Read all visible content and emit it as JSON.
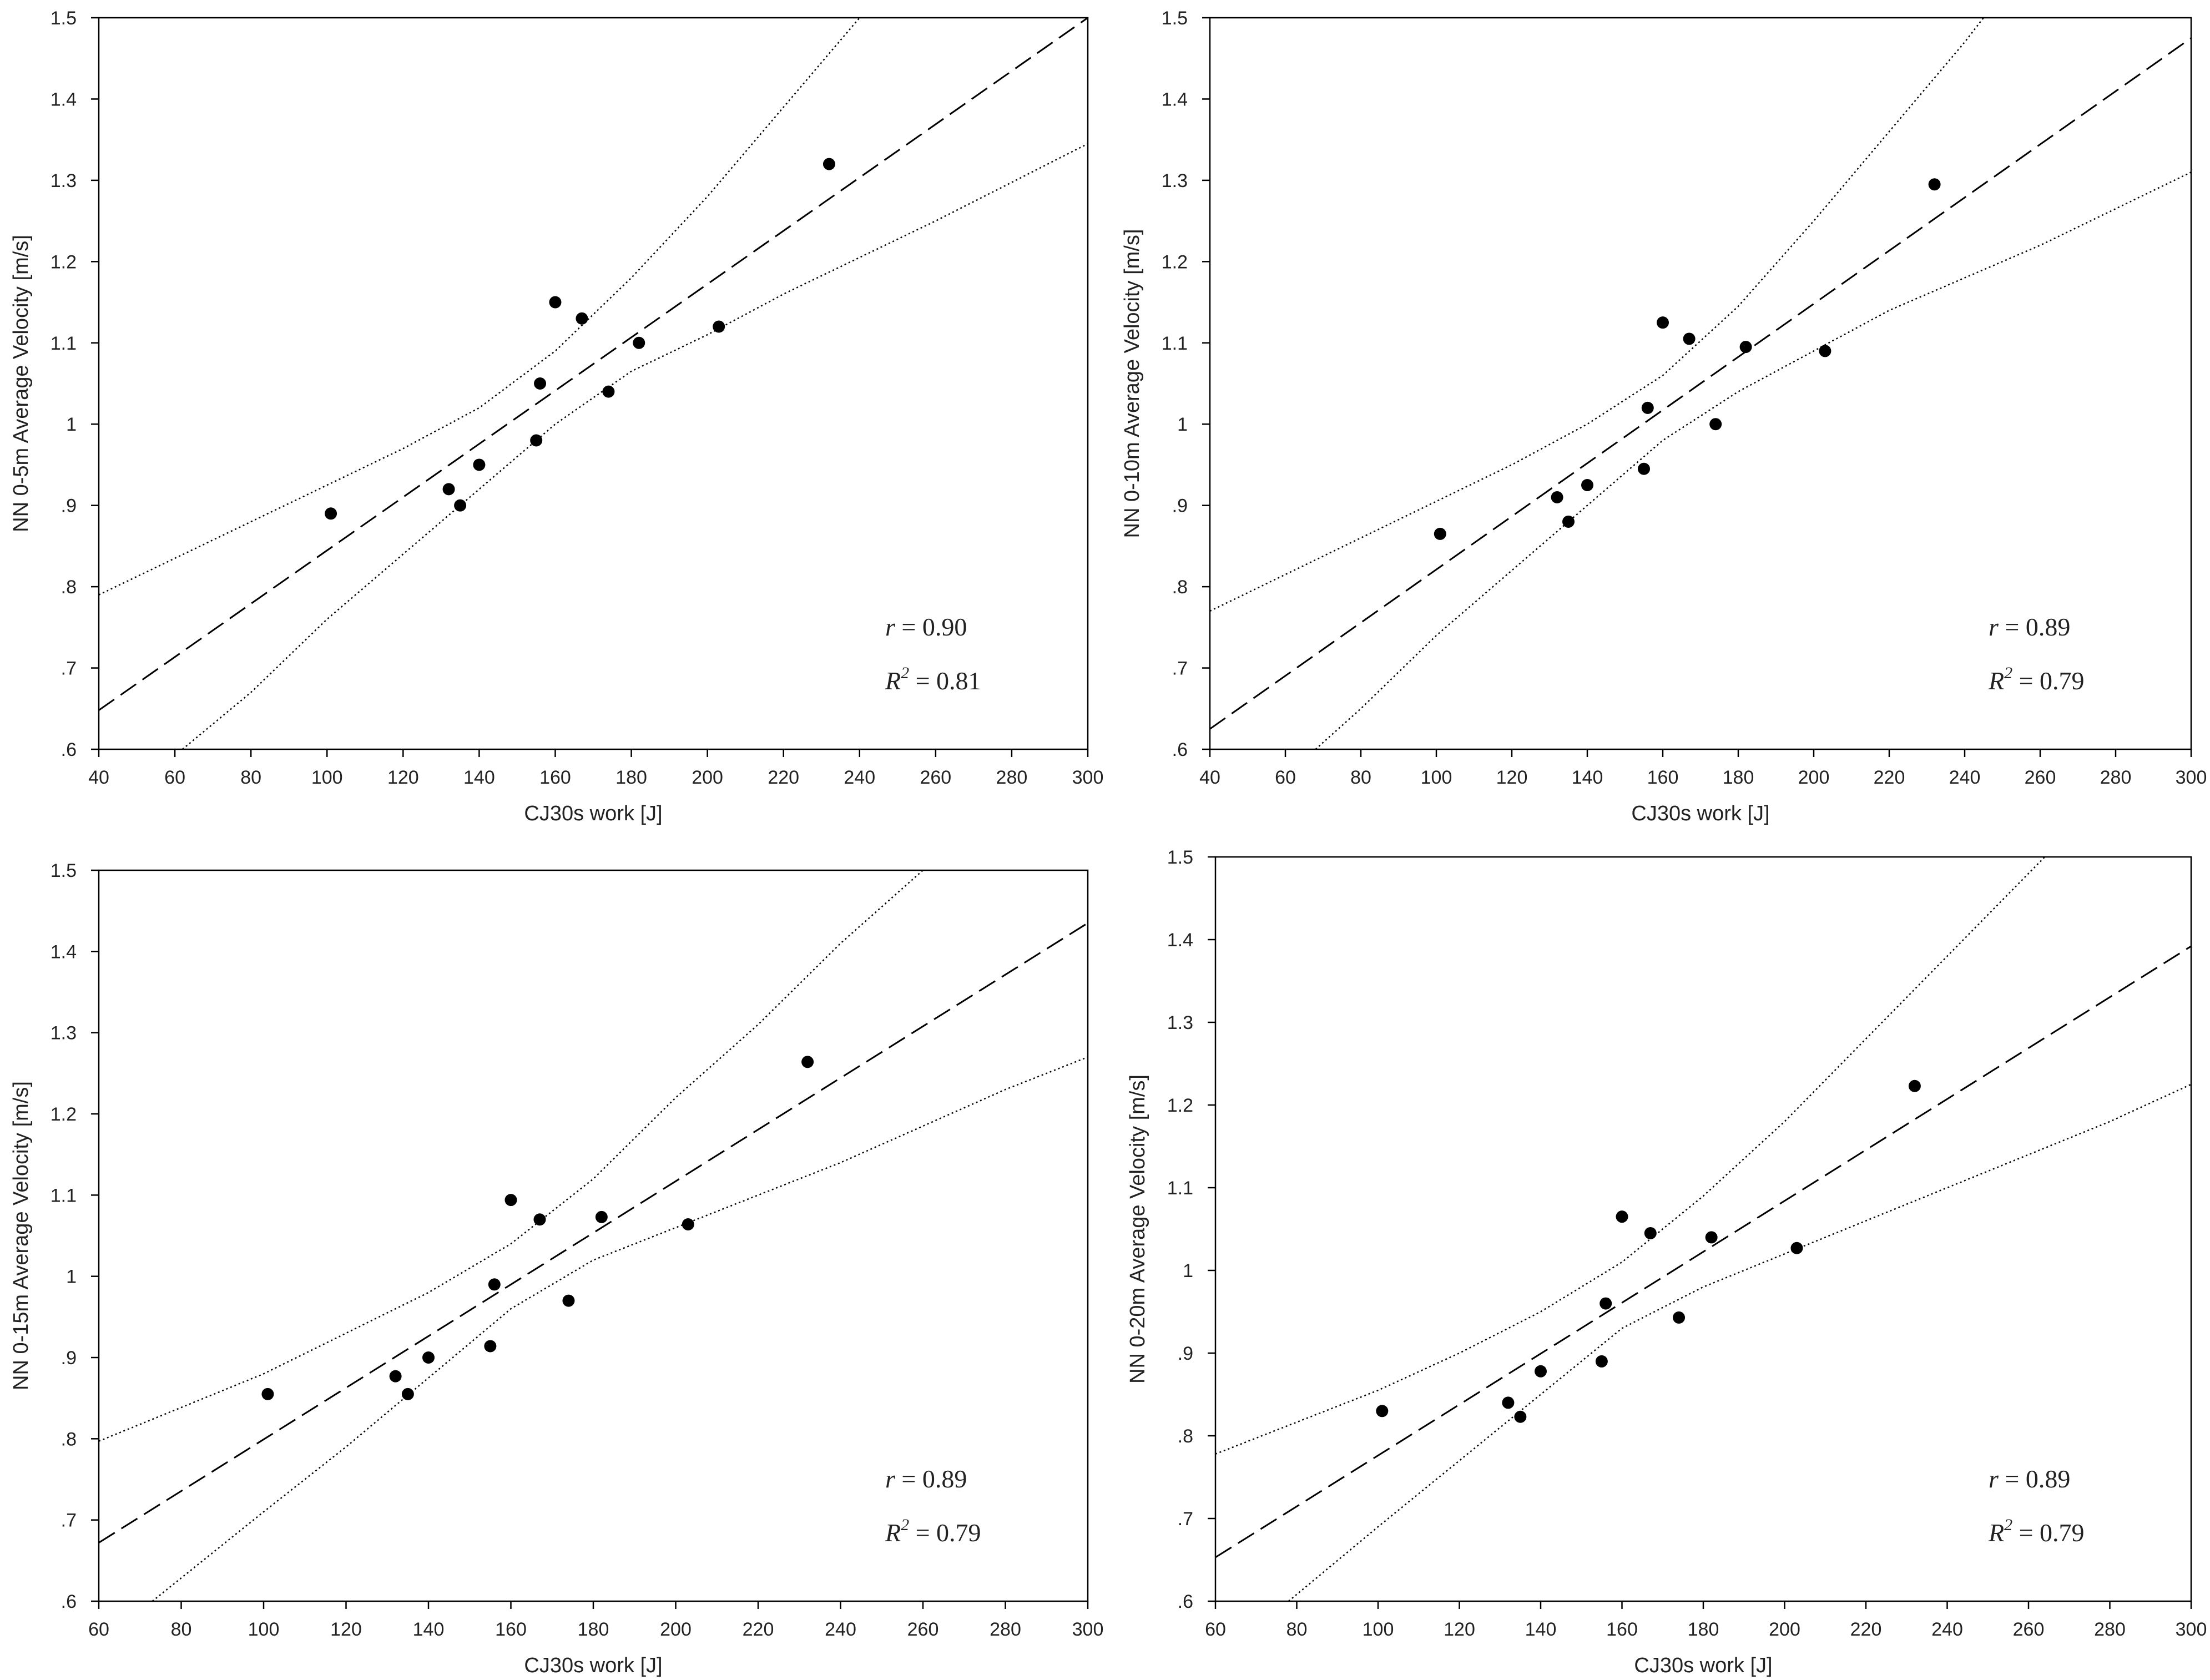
{
  "chart_data": [
    {
      "type": "scatter",
      "xlabel": "CJ30s work [J]",
      "ylabel": "NN 0-5m Average Velocity [m/s]",
      "xlim": [
        40,
        300
      ],
      "ylim": [
        0.6,
        1.5
      ],
      "xticks": [
        40,
        60,
        80,
        100,
        120,
        140,
        160,
        180,
        200,
        220,
        240,
        260,
        280,
        300
      ],
      "yticks": [
        0.6,
        0.7,
        0.8,
        0.9,
        1,
        1.1,
        1.2,
        1.3,
        1.4,
        1.5
      ],
      "grid": false,
      "points": [
        {
          "x": 101,
          "y": 0.89
        },
        {
          "x": 132,
          "y": 0.92
        },
        {
          "x": 135,
          "y": 0.9
        },
        {
          "x": 140,
          "y": 0.95
        },
        {
          "x": 155,
          "y": 0.98
        },
        {
          "x": 156,
          "y": 1.05
        },
        {
          "x": 160,
          "y": 1.15
        },
        {
          "x": 167,
          "y": 1.13
        },
        {
          "x": 174,
          "y": 1.04
        },
        {
          "x": 182,
          "y": 1.1
        },
        {
          "x": 203,
          "y": 1.12
        },
        {
          "x": 232,
          "y": 1.32
        }
      ],
      "fit_line": {
        "style": "dashed",
        "points": [
          {
            "x": 40,
            "y": 0.648
          },
          {
            "x": 300,
            "y": 1.5
          }
        ]
      },
      "confidence_bands": {
        "style": "dotted",
        "upper": [
          {
            "x": 40,
            "y": 0.79
          },
          {
            "x": 80,
            "y": 0.88
          },
          {
            "x": 120,
            "y": 0.97
          },
          {
            "x": 140,
            "y": 1.02
          },
          {
            "x": 160,
            "y": 1.09
          },
          {
            "x": 180,
            "y": 1.18
          },
          {
            "x": 200,
            "y": 1.28
          },
          {
            "x": 220,
            "y": 1.39
          },
          {
            "x": 240,
            "y": 1.5
          },
          {
            "x": 250,
            "y": 1.55
          }
        ],
        "lower": [
          {
            "x": 62,
            "y": 0.6
          },
          {
            "x": 80,
            "y": 0.67
          },
          {
            "x": 100,
            "y": 0.76
          },
          {
            "x": 120,
            "y": 0.84
          },
          {
            "x": 140,
            "y": 0.92
          },
          {
            "x": 160,
            "y": 1.0
          },
          {
            "x": 180,
            "y": 1.065
          },
          {
            "x": 200,
            "y": 1.11
          },
          {
            "x": 220,
            "y": 1.16
          },
          {
            "x": 260,
            "y": 1.25
          },
          {
            "x": 300,
            "y": 1.345
          }
        ]
      },
      "annotations": [
        {
          "label": "r",
          "value": "= 0.90"
        },
        {
          "label": "R",
          "sup": "2",
          "value": "= 0.81"
        }
      ]
    },
    {
      "type": "scatter",
      "xlabel": "CJ30s work [J]",
      "ylabel": "NN 0-10m Average Velocity [m/s]",
      "xlim": [
        40,
        300
      ],
      "ylim": [
        0.6,
        1.5
      ],
      "xticks": [
        40,
        60,
        80,
        100,
        120,
        140,
        160,
        180,
        200,
        220,
        240,
        260,
        280,
        300
      ],
      "yticks": [
        0.6,
        0.7,
        0.8,
        0.9,
        1,
        1.1,
        1.2,
        1.3,
        1.4,
        1.5
      ],
      "grid": false,
      "points": [
        {
          "x": 101,
          "y": 0.865
        },
        {
          "x": 132,
          "y": 0.91
        },
        {
          "x": 135,
          "y": 0.88
        },
        {
          "x": 140,
          "y": 0.925
        },
        {
          "x": 155,
          "y": 0.945
        },
        {
          "x": 156,
          "y": 1.02
        },
        {
          "x": 160,
          "y": 1.125
        },
        {
          "x": 167,
          "y": 1.105
        },
        {
          "x": 174,
          "y": 1.0
        },
        {
          "x": 182,
          "y": 1.095
        },
        {
          "x": 203,
          "y": 1.09
        },
        {
          "x": 232,
          "y": 1.295
        }
      ],
      "fit_line": {
        "style": "dashed",
        "points": [
          {
            "x": 40,
            "y": 0.625
          },
          {
            "x": 300,
            "y": 1.475
          }
        ]
      },
      "confidence_bands": {
        "style": "dotted",
        "upper": [
          {
            "x": 40,
            "y": 0.77
          },
          {
            "x": 80,
            "y": 0.86
          },
          {
            "x": 120,
            "y": 0.95
          },
          {
            "x": 140,
            "y": 1.0
          },
          {
            "x": 160,
            "y": 1.06
          },
          {
            "x": 180,
            "y": 1.145
          },
          {
            "x": 200,
            "y": 1.25
          },
          {
            "x": 220,
            "y": 1.36
          },
          {
            "x": 240,
            "y": 1.47
          },
          {
            "x": 250,
            "y": 1.53
          }
        ],
        "lower": [
          {
            "x": 68,
            "y": 0.6
          },
          {
            "x": 80,
            "y": 0.65
          },
          {
            "x": 100,
            "y": 0.74
          },
          {
            "x": 120,
            "y": 0.82
          },
          {
            "x": 140,
            "y": 0.9
          },
          {
            "x": 160,
            "y": 0.98
          },
          {
            "x": 180,
            "y": 1.04
          },
          {
            "x": 200,
            "y": 1.09
          },
          {
            "x": 220,
            "y": 1.14
          },
          {
            "x": 260,
            "y": 1.22
          },
          {
            "x": 300,
            "y": 1.31
          }
        ]
      },
      "annotations": [
        {
          "label": "r",
          "value": "= 0.89"
        },
        {
          "label": "R",
          "sup": "2",
          "value": "= 0.79"
        }
      ]
    },
    {
      "type": "scatter",
      "xlabel": "CJ30s work [J]",
      "ylabel": "NN 0-15m Average Velocity [m/s]",
      "xlim": [
        60,
        300
      ],
      "ylim": [
        0.6,
        1.5
      ],
      "xticks": [
        60,
        80,
        100,
        120,
        140,
        160,
        180,
        200,
        220,
        240,
        260,
        280,
        300
      ],
      "yticks": [
        0.6,
        0.7,
        0.8,
        0.9,
        1,
        1.1,
        1.2,
        1.3,
        1.4,
        1.5
      ],
      "grid": false,
      "points": [
        {
          "x": 101,
          "y": 0.855
        },
        {
          "x": 132,
          "y": 0.877
        },
        {
          "x": 135,
          "y": 0.855
        },
        {
          "x": 140,
          "y": 0.9
        },
        {
          "x": 155,
          "y": 0.914
        },
        {
          "x": 156,
          "y": 0.99
        },
        {
          "x": 160,
          "y": 1.094
        },
        {
          "x": 167,
          "y": 1.07
        },
        {
          "x": 174,
          "y": 0.97
        },
        {
          "x": 182,
          "y": 1.073
        },
        {
          "x": 203,
          "y": 1.064
        },
        {
          "x": 232,
          "y": 1.264
        }
      ],
      "fit_line": {
        "style": "dashed",
        "points": [
          {
            "x": 60,
            "y": 0.672
          },
          {
            "x": 300,
            "y": 1.435
          }
        ]
      },
      "confidence_bands": {
        "style": "dotted",
        "upper": [
          {
            "x": 60,
            "y": 0.797
          },
          {
            "x": 100,
            "y": 0.88
          },
          {
            "x": 120,
            "y": 0.93
          },
          {
            "x": 140,
            "y": 0.98
          },
          {
            "x": 160,
            "y": 1.04
          },
          {
            "x": 180,
            "y": 1.12
          },
          {
            "x": 200,
            "y": 1.22
          },
          {
            "x": 220,
            "y": 1.31
          },
          {
            "x": 240,
            "y": 1.41
          },
          {
            "x": 260,
            "y": 1.5
          },
          {
            "x": 270,
            "y": 1.55
          }
        ],
        "lower": [
          {
            "x": 73,
            "y": 0.6
          },
          {
            "x": 100,
            "y": 0.71
          },
          {
            "x": 120,
            "y": 0.79
          },
          {
            "x": 140,
            "y": 0.875
          },
          {
            "x": 160,
            "y": 0.96
          },
          {
            "x": 180,
            "y": 1.02
          },
          {
            "x": 200,
            "y": 1.06
          },
          {
            "x": 240,
            "y": 1.14
          },
          {
            "x": 280,
            "y": 1.23
          },
          {
            "x": 300,
            "y": 1.27
          }
        ]
      },
      "annotations": [
        {
          "label": "r",
          "value": "= 0.89"
        },
        {
          "label": "R",
          "sup": "2",
          "value": "= 0.79"
        }
      ]
    },
    {
      "type": "scatter",
      "xlabel": "CJ30s work [J]",
      "ylabel": "NN 0-20m Average Velocity [m/s]",
      "xlim": [
        60,
        300
      ],
      "ylim": [
        0.6,
        1.5
      ],
      "xticks": [
        60,
        80,
        100,
        120,
        140,
        160,
        180,
        200,
        220,
        240,
        260,
        280,
        300
      ],
      "yticks": [
        0.6,
        0.7,
        0.8,
        0.9,
        1,
        1.1,
        1.2,
        1.3,
        1.4,
        1.5
      ],
      "grid": false,
      "points": [
        {
          "x": 101,
          "y": 0.83
        },
        {
          "x": 132,
          "y": 0.84
        },
        {
          "x": 135,
          "y": 0.823
        },
        {
          "x": 140,
          "y": 0.878
        },
        {
          "x": 155,
          "y": 0.89
        },
        {
          "x": 156,
          "y": 0.96
        },
        {
          "x": 160,
          "y": 1.065
        },
        {
          "x": 167,
          "y": 1.045
        },
        {
          "x": 174,
          "y": 0.943
        },
        {
          "x": 182,
          "y": 1.04
        },
        {
          "x": 203,
          "y": 1.027
        },
        {
          "x": 232,
          "y": 1.223
        }
      ],
      "fit_line": {
        "style": "dashed",
        "points": [
          {
            "x": 60,
            "y": 0.653
          },
          {
            "x": 300,
            "y": 1.392
          }
        ]
      },
      "confidence_bands": {
        "style": "dotted",
        "upper": [
          {
            "x": 60,
            "y": 0.778
          },
          {
            "x": 100,
            "y": 0.855
          },
          {
            "x": 120,
            "y": 0.9
          },
          {
            "x": 140,
            "y": 0.95
          },
          {
            "x": 160,
            "y": 1.01
          },
          {
            "x": 180,
            "y": 1.09
          },
          {
            "x": 200,
            "y": 1.18
          },
          {
            "x": 220,
            "y": 1.28
          },
          {
            "x": 240,
            "y": 1.38
          },
          {
            "x": 260,
            "y": 1.48
          },
          {
            "x": 270,
            "y": 1.53
          }
        ],
        "lower": [
          {
            "x": 78,
            "y": 0.6
          },
          {
            "x": 100,
            "y": 0.69
          },
          {
            "x": 120,
            "y": 0.77
          },
          {
            "x": 140,
            "y": 0.85
          },
          {
            "x": 160,
            "y": 0.93
          },
          {
            "x": 180,
            "y": 0.98
          },
          {
            "x": 200,
            "y": 1.02
          },
          {
            "x": 240,
            "y": 1.1
          },
          {
            "x": 280,
            "y": 1.18
          },
          {
            "x": 300,
            "y": 1.225
          }
        ]
      },
      "annotations": [
        {
          "label": "r",
          "value": "= 0.89"
        },
        {
          "label": "R",
          "sup": "2",
          "value": "= 0.79"
        }
      ]
    }
  ]
}
